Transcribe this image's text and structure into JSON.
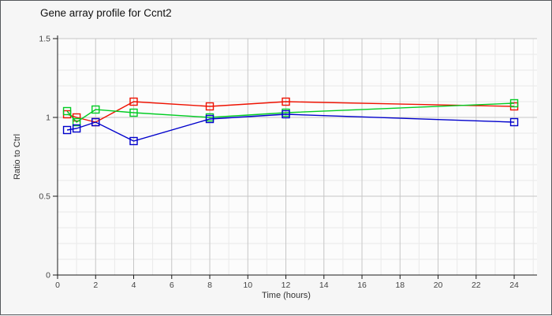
{
  "chart_data": {
    "type": "line",
    "title": "Gene array profile for Ccnt2",
    "xlabel": "Time (hours)",
    "ylabel": "Ratio to Ctrl",
    "x": [
      0.5,
      1,
      2,
      4,
      8,
      12,
      24
    ],
    "series": [
      {
        "name": "series-red",
        "color": "#ee1100",
        "values": [
          1.02,
          1.0,
          0.97,
          1.1,
          1.07,
          1.1,
          1.07
        ]
      },
      {
        "name": "series-green",
        "color": "#00cc22",
        "values": [
          1.04,
          0.97,
          1.05,
          1.03,
          1.0,
          1.03,
          1.09
        ]
      },
      {
        "name": "series-blue",
        "color": "#0000cc",
        "values": [
          0.92,
          0.93,
          0.97,
          0.85,
          0.99,
          1.02,
          0.97
        ]
      }
    ],
    "xlim": [
      0,
      25.2
    ],
    "ylim": [
      0,
      1.5
    ],
    "x_ticks": [
      0,
      2,
      4,
      6,
      8,
      10,
      12,
      14,
      16,
      18,
      20,
      22,
      24
    ],
    "y_ticks": [
      0,
      0.5,
      1,
      1.5
    ],
    "y_tick_labels": [
      "0",
      "0.5",
      "1",
      "1.5"
    ],
    "x_minor_step": 1,
    "y_minor_step": 0.1,
    "grid": true,
    "legend": "none",
    "marker": "open-square"
  },
  "style_colors": {
    "grid_major": "#c6c6c6",
    "grid_minor": "#e9e9e9",
    "plot_background": "#fcfcfc",
    "axis": "#1a1a1a"
  }
}
